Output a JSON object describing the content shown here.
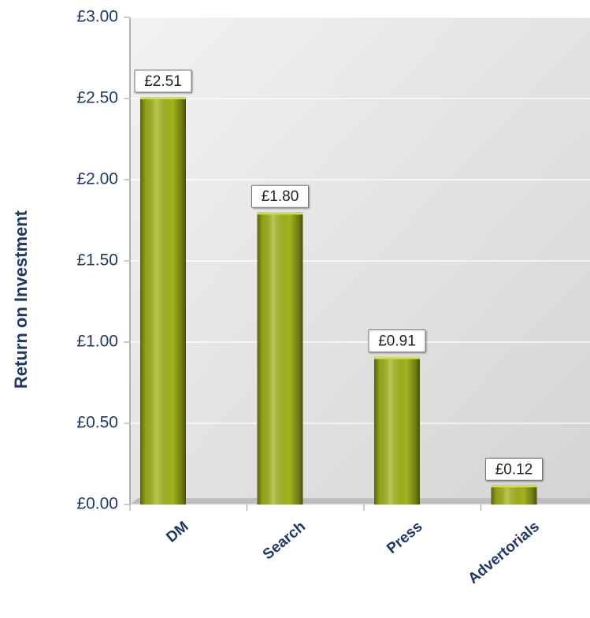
{
  "chart_data": {
    "type": "bar",
    "y_label": "Return on Investment",
    "categories": [
      "DM",
      "Search",
      "Press",
      "Advertorials"
    ],
    "values": [
      2.51,
      1.8,
      0.91,
      0.12
    ],
    "value_labels": [
      "£2.51",
      "£1.80",
      "£0.91",
      "£0.12"
    ],
    "color": "#a2b41c",
    "ylim": [
      0,
      3
    ],
    "yticks": [
      {
        "value": 0,
        "label": "£0.00"
      },
      {
        "value": 0.5,
        "label": "£0.50"
      },
      {
        "value": 1,
        "label": "£1.00"
      },
      {
        "value": 1.5,
        "label": "£1.50"
      },
      {
        "value": 2,
        "label": "£2.00"
      },
      {
        "value": 2.5,
        "label": "£2.50"
      },
      {
        "value": 3,
        "label": "£3.00"
      }
    ],
    "grid": true
  }
}
